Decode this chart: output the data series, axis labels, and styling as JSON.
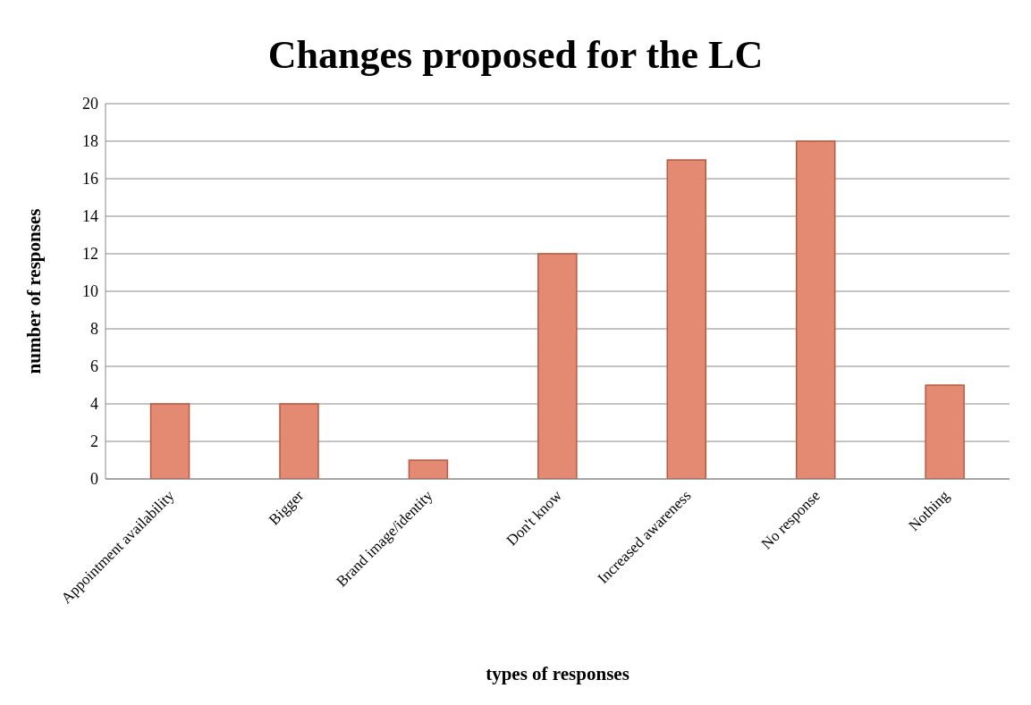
{
  "chart_data": {
    "type": "bar",
    "title": "Changes proposed for the LC",
    "xlabel": "types of responses",
    "ylabel": "number of responses",
    "categories": [
      "Appointment availability",
      "Bigger",
      "Brand image/identity",
      "Don't know",
      "Increased awareness",
      "No response",
      "Nothing"
    ],
    "values": [
      4,
      4,
      1,
      12,
      17,
      18,
      5
    ],
    "color": "#e58a72",
    "ylim": [
      0,
      20
    ],
    "yticks": [
      0,
      2,
      4,
      6,
      8,
      10,
      12,
      14,
      16,
      18,
      20
    ],
    "grid": "y"
  }
}
